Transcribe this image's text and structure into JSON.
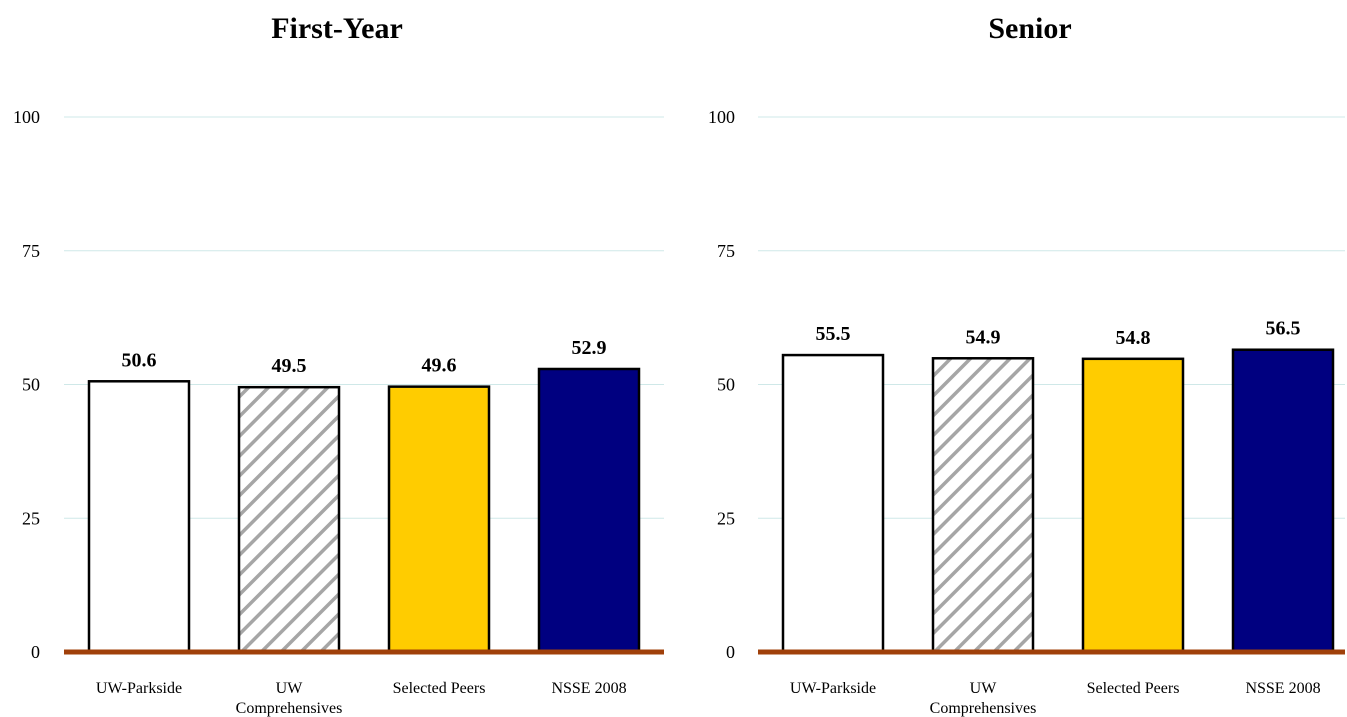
{
  "chart_data": [
    {
      "type": "bar",
      "title": "First-Year",
      "categories": [
        "UW-Parkside",
        "UW Comprehensives",
        "Selected Peers",
        "NSSE 2008"
      ],
      "category_lines": [
        [
          "UW-Parkside"
        ],
        [
          "UW",
          "Comprehensives"
        ],
        [
          "Selected Peers"
        ],
        [
          "NSSE 2008"
        ]
      ],
      "values": [
        50.6,
        49.5,
        49.6,
        52.9
      ],
      "data_labels": [
        "50.6",
        "49.5",
        "49.6",
        "52.9"
      ],
      "ylim": [
        0,
        100
      ],
      "yticks": [
        0,
        25,
        50,
        75,
        100
      ],
      "ytick_labels": [
        "0",
        "25",
        "50",
        "75",
        "100"
      ],
      "grid": true,
      "xlabel": "",
      "ylabel": ""
    },
    {
      "type": "bar",
      "title": "Senior",
      "categories": [
        "UW-Parkside",
        "UW Comprehensives",
        "Selected Peers",
        "NSSE 2008"
      ],
      "category_lines": [
        [
          "UW-Parkside"
        ],
        [
          "UW",
          "Comprehensives"
        ],
        [
          "Selected Peers"
        ],
        [
          "NSSE 2008"
        ]
      ],
      "values": [
        55.5,
        54.9,
        54.8,
        56.5
      ],
      "data_labels": [
        "55.5",
        "54.9",
        "54.8",
        "56.5"
      ],
      "ylim": [
        0,
        100
      ],
      "yticks": [
        0,
        25,
        50,
        75,
        100
      ],
      "ytick_labels": [
        "0",
        "25",
        "50",
        "75",
        "100"
      ],
      "grid": true,
      "xlabel": "",
      "ylabel": ""
    }
  ],
  "styles": {
    "bar_fills": [
      "#ffffff",
      "hatch",
      "#ffcc00",
      "#000080"
    ],
    "bar_stroke": "#000000",
    "hatch_color": "#a6a6a6",
    "grid_color": "#cfe8e8",
    "baseline_color": "#a0400a"
  }
}
